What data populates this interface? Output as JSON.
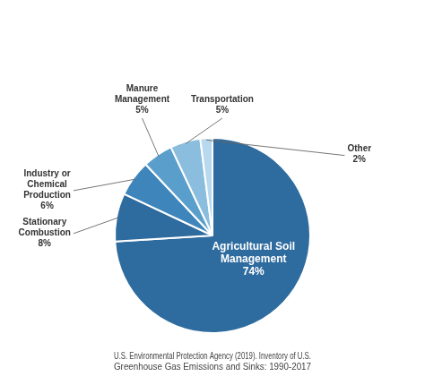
{
  "chart_data": {
    "type": "pie",
    "categories": [
      "Agricultural Soil\nManagement\n74%",
      "Stationary\nCombustion\n8%",
      "Industry or\nChemical\nProduction\n6%",
      "Manure\nManagement\n5%",
      "Transportation\n5%",
      "Other\n2%"
    ],
    "values": [
      74,
      8,
      6,
      5,
      5,
      2
    ],
    "colors": [
      "#2e6b9e",
      "#2e6b9e",
      "#3d85bb",
      "#5a9fcc",
      "#8bbede",
      "#b8d8ed"
    ],
    "annotations": [
      "U.S. Environmental Protection Agency (2019). Inventory of U.S.\nGreenhouse Gas Emissions and Sinks: 1990-2017"
    ]
  }
}
